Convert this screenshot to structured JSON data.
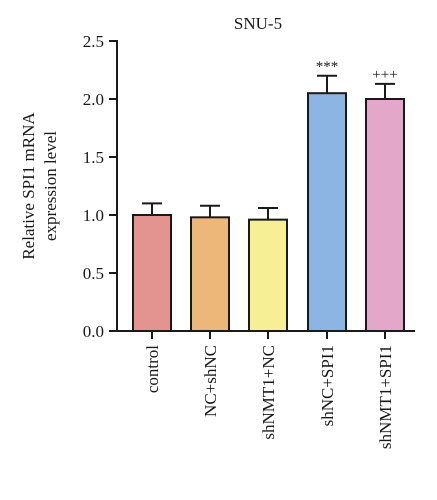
{
  "chart_data": {
    "type": "bar",
    "title": "SNU-5",
    "ylabel_lines": [
      "Relative SPI1 mRNA",
      "expression level"
    ],
    "xlabel": "",
    "ylim": [
      0,
      2.5
    ],
    "yticks": [
      "0.0",
      "0.5",
      "1.0",
      "1.5",
      "2.0",
      "2.5"
    ],
    "categories": [
      "control",
      "NC+shNC",
      "shNMT1+NC",
      "shNC+SPI1",
      "shNMT1+SPI1"
    ],
    "values": [
      1.0,
      0.98,
      0.96,
      2.05,
      2.0
    ],
    "errors": [
      0.1,
      0.1,
      0.1,
      0.15,
      0.13
    ],
    "colors": [
      "#e49490",
      "#edb77a",
      "#f6ef96",
      "#8db5e4",
      "#e3a7c9"
    ],
    "annotations": [
      "",
      "",
      "",
      "***",
      "+++"
    ],
    "grid": false
  }
}
